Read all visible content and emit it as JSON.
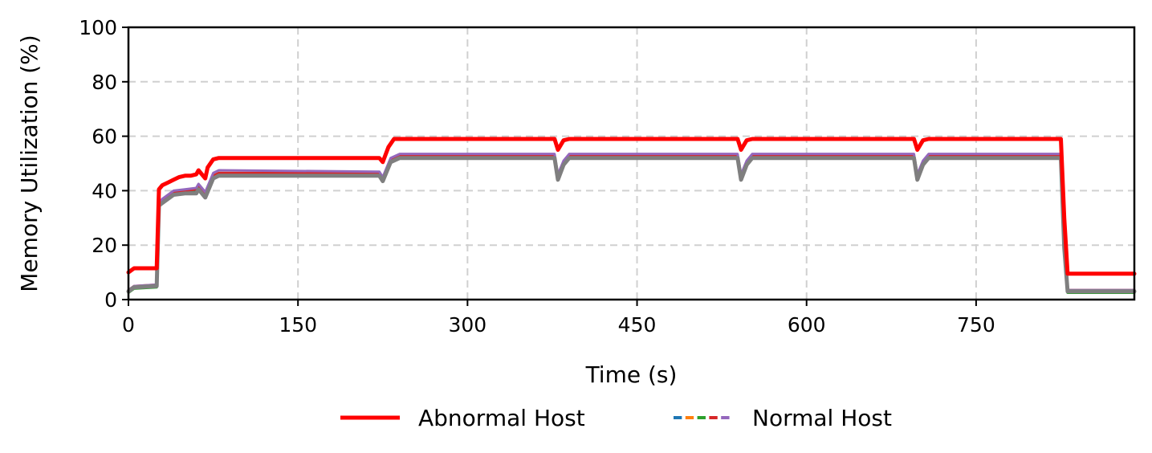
{
  "chart_data": {
    "type": "line",
    "title": "",
    "xlabel": "Time (s)",
    "ylabel": "Memory Utilization (%)",
    "xlim": [
      0,
      890
    ],
    "ylim": [
      0,
      100
    ],
    "xticks": [
      0,
      150,
      300,
      450,
      600,
      750
    ],
    "yticks": [
      0,
      20,
      40,
      60,
      80,
      100
    ],
    "grid": true,
    "legend_position": "bottom-center",
    "series": [
      {
        "name": "Abnormal Host",
        "color": "#ff0000",
        "style": "solid",
        "x": [
          0,
          5,
          10,
          25,
          27,
          30,
          35,
          40,
          45,
          50,
          55,
          60,
          62,
          65,
          68,
          70,
          75,
          80,
          150,
          220,
          222,
          225,
          230,
          235,
          300,
          375,
          377,
          380,
          385,
          390,
          450,
          537,
          539,
          542,
          547,
          552,
          620,
          693,
          695,
          698,
          703,
          708,
          760,
          825,
          828,
          831,
          890
        ],
        "values": [
          10,
          11.5,
          11.5,
          11.5,
          40.5,
          42,
          43,
          44,
          45,
          45.5,
          45.5,
          46,
          47.5,
          46,
          44.5,
          48.5,
          51.5,
          52,
          52,
          52,
          52,
          50.5,
          56,
          59,
          59,
          59,
          59,
          55,
          58.5,
          59,
          59,
          59,
          59,
          55,
          58.5,
          59,
          59,
          59,
          59,
          55,
          58.5,
          59,
          59,
          59,
          30,
          9.5,
          9.5
        ]
      },
      {
        "name": "Normal Host",
        "color": "#1f77b4",
        "style": "dashed",
        "x": [
          0,
          5,
          25,
          27,
          30,
          40,
          50,
          60,
          62,
          65,
          68,
          75,
          80,
          220,
          222,
          225,
          232,
          240,
          375,
          377,
          380,
          385,
          390,
          537,
          539,
          542,
          547,
          552,
          693,
          695,
          698,
          703,
          708,
          825,
          828,
          831,
          890
        ],
        "values": [
          3,
          4.5,
          5,
          35,
          36,
          39,
          39.5,
          40,
          41.5,
          40,
          38.5,
          45,
          46,
          46,
          46,
          44,
          51,
          52.5,
          52.5,
          52.5,
          45,
          50,
          52.5,
          52.5,
          52.5,
          45,
          50,
          52.5,
          52.5,
          52.5,
          45,
          50,
          52.5,
          52.5,
          20,
          3,
          3
        ]
      },
      {
        "name": "Normal Host",
        "color": "#ff7f0e",
        "style": "dashed",
        "x": [
          0,
          5,
          25,
          27,
          30,
          40,
          50,
          60,
          62,
          65,
          68,
          75,
          80,
          220,
          222,
          225,
          232,
          240,
          375,
          377,
          380,
          385,
          390,
          537,
          539,
          542,
          547,
          552,
          693,
          695,
          698,
          703,
          708,
          825,
          828,
          831,
          890
        ],
        "values": [
          3.5,
          5,
          5.5,
          35.5,
          36.5,
          39.5,
          40,
          40.5,
          42,
          40.5,
          39,
          45.5,
          46.5,
          46.5,
          46.5,
          44.5,
          51.5,
          53,
          53,
          53,
          45.5,
          50.5,
          53,
          53,
          53,
          45.5,
          50.5,
          53,
          53,
          53,
          45.5,
          50.5,
          53,
          53,
          20.5,
          3.5,
          3.5
        ]
      },
      {
        "name": "Normal Host",
        "color": "#2ca02c",
        "style": "dashed",
        "x": [
          0,
          5,
          25,
          27,
          30,
          40,
          50,
          60,
          62,
          65,
          68,
          75,
          80,
          220,
          222,
          225,
          232,
          240,
          375,
          377,
          380,
          385,
          390,
          537,
          539,
          542,
          547,
          552,
          693,
          695,
          698,
          703,
          708,
          825,
          828,
          831,
          890
        ],
        "values": [
          2.5,
          4,
          4.5,
          34.5,
          35.5,
          38.5,
          39,
          39.5,
          41,
          39.5,
          38,
          44.5,
          45.5,
          45.5,
          45.5,
          43.5,
          50.5,
          52,
          52,
          52,
          44.5,
          49.5,
          52,
          52,
          52,
          44.5,
          49.5,
          52,
          52,
          52,
          44.5,
          49.5,
          52,
          52,
          19.5,
          2.5,
          2.5
        ]
      },
      {
        "name": "Normal Host",
        "color": "#d62728",
        "style": "dashed",
        "x": [
          0,
          5,
          25,
          27,
          30,
          40,
          50,
          60,
          62,
          65,
          68,
          75,
          80,
          220,
          222,
          225,
          232,
          240,
          375,
          377,
          380,
          385,
          390,
          537,
          539,
          542,
          547,
          552,
          693,
          695,
          698,
          703,
          708,
          825,
          828,
          831,
          890
        ],
        "values": [
          3,
          4.5,
          5,
          35,
          36.5,
          39.5,
          40,
          40.5,
          42,
          40.5,
          39,
          45.5,
          46.5,
          46.5,
          46.5,
          44.5,
          51.5,
          53,
          53,
          53,
          45.5,
          50.5,
          53,
          53,
          53,
          45.5,
          50.5,
          53,
          53,
          53,
          45.5,
          50.5,
          53,
          53,
          20.5,
          3,
          3
        ]
      },
      {
        "name": "Normal Host",
        "color": "#9467bd",
        "style": "dashed",
        "x": [
          0,
          5,
          25,
          27,
          30,
          40,
          50,
          60,
          62,
          65,
          68,
          75,
          80,
          220,
          222,
          225,
          232,
          240,
          375,
          377,
          380,
          385,
          390,
          537,
          539,
          542,
          547,
          552,
          693,
          695,
          698,
          703,
          708,
          825,
          828,
          831,
          890
        ],
        "values": [
          3.5,
          5,
          5.5,
          35.5,
          37,
          40,
          40.5,
          41,
          42.5,
          41,
          39.5,
          46.5,
          47.5,
          47,
          47,
          45,
          52,
          53.5,
          53.5,
          53.5,
          46,
          51,
          53.5,
          53.5,
          53.5,
          46,
          51,
          53.5,
          53.5,
          53.5,
          46,
          51,
          53.5,
          53.5,
          21,
          3.5,
          3.5
        ]
      },
      {
        "name": "Normal Host",
        "color": "#7f7f7f",
        "style": "solid",
        "x": [
          0,
          5,
          25,
          27,
          30,
          40,
          50,
          60,
          62,
          65,
          68,
          75,
          80,
          220,
          222,
          225,
          232,
          240,
          375,
          377,
          380,
          385,
          390,
          537,
          539,
          542,
          547,
          552,
          693,
          695,
          698,
          703,
          708,
          825,
          828,
          831,
          890
        ],
        "values": [
          3,
          4.5,
          5,
          34.5,
          35.5,
          38.5,
          39,
          39,
          40.5,
          39,
          37.5,
          44.5,
          45.5,
          45.5,
          45.5,
          43.5,
          50.5,
          52,
          52,
          52,
          44,
          49.5,
          52,
          52,
          52,
          44,
          49.5,
          52,
          52,
          52,
          44,
          49.5,
          52,
          52,
          19,
          3,
          3
        ]
      }
    ],
    "legend": [
      {
        "label": "Abnormal Host",
        "style": "solid",
        "colors": [
          "#ff0000"
        ]
      },
      {
        "label": "Normal Host",
        "style": "dashed",
        "colors": [
          "#1f77b4",
          "#ff7f0e",
          "#2ca02c",
          "#d62728",
          "#9467bd"
        ]
      }
    ]
  }
}
